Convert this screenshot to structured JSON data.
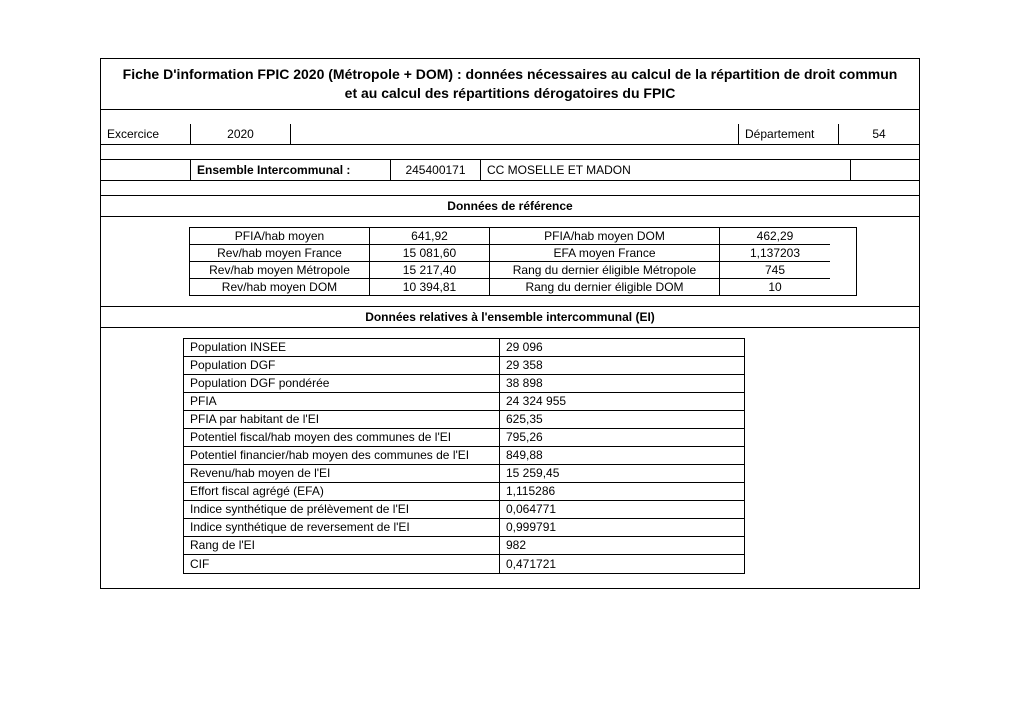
{
  "title_line1": "Fiche D'information FPIC 2020 (Métropole + DOM) : données nécessaires au calcul de la répartition de droit commun",
  "title_line2": "et au calcul des répartitions dérogatoires du FPIC",
  "meta": {
    "exercice_label": "Excercice",
    "exercice_value": "2020",
    "departement_label": "Département",
    "departement_value": "54",
    "ensemble_label": "Ensemble Intercommunal :",
    "ensemble_code": "245400171",
    "ensemble_name": "CC MOSELLE ET MADON"
  },
  "sections": {
    "reference_header": "Données de référence",
    "ei_header": "Données relatives à l'ensemble intercommunal (EI)"
  },
  "reference": [
    {
      "l1": "PFIA/hab moyen",
      "v1": "641,92",
      "l2": "PFIA/hab moyen DOM",
      "v2": "462,29"
    },
    {
      "l1": "Rev/hab moyen France",
      "v1": "15 081,60",
      "l2": "EFA moyen France",
      "v2": "1,137203"
    },
    {
      "l1": "Rev/hab moyen Métropole",
      "v1": "15 217,40",
      "l2": "Rang du dernier éligible Métropole",
      "v2": "745"
    },
    {
      "l1": "Rev/hab moyen DOM",
      "v1": "10 394,81",
      "l2": "Rang du dernier éligible DOM",
      "v2": "10"
    }
  ],
  "ei": [
    {
      "label": "Population INSEE",
      "value": "29 096"
    },
    {
      "label": "Population DGF",
      "value": "29 358"
    },
    {
      "label": "Population DGF pondérée",
      "value": "38 898"
    },
    {
      "label": "PFIA",
      "value": "24 324 955"
    },
    {
      "label": "PFIA par habitant de l'EI",
      "value": "625,35"
    },
    {
      "label": "Potentiel fiscal/hab moyen des communes de l'EI",
      "value": "795,26"
    },
    {
      "label": "Potentiel financier/hab moyen des communes de l'EI",
      "value": "849,88"
    },
    {
      "label": "Revenu/hab moyen de l'EI",
      "value": "15 259,45"
    },
    {
      "label": "Effort fiscal agrégé (EFA)",
      "value": "1,115286"
    },
    {
      "label": "Indice synthétique de prélèvement de l'EI",
      "value": "0,064771"
    },
    {
      "label": "Indice synthétique de reversement de l'EI",
      "value": "0,999791"
    },
    {
      "label": "Rang de l'EI",
      "value": "982"
    },
    {
      "label": "CIF",
      "value": "0,471721"
    }
  ],
  "style": {
    "background_color": "#ffffff",
    "border_color": "#000000",
    "text_color": "#000000",
    "font_family": "Arial",
    "title_fontsize_pt": 11,
    "body_fontsize_pt": 9
  }
}
